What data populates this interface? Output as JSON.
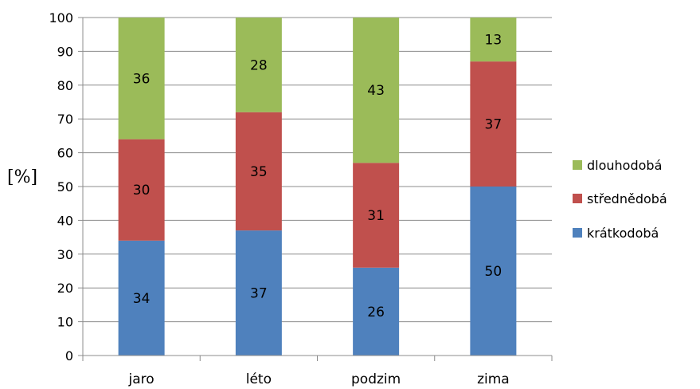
{
  "chart_data": {
    "type": "bar",
    "stacked": true,
    "categories": [
      "jaro",
      "léto",
      "podzim",
      "zima"
    ],
    "series": [
      {
        "name": "krátkodobá",
        "values": [
          34,
          37,
          26,
          50
        ],
        "color": "#4f81bd"
      },
      {
        "name": "střednědobá",
        "values": [
          30,
          35,
          31,
          37
        ],
        "color": "#c0504d"
      },
      {
        "name": "dlouhodobá",
        "values": [
          36,
          28,
          43,
          13
        ],
        "color": "#9bbb59"
      }
    ],
    "title": "",
    "xlabel": "",
    "ylabel": "[%]",
    "ylim": [
      0,
      100
    ],
    "yticks": [
      0,
      10,
      20,
      30,
      40,
      50,
      60,
      70,
      80,
      90,
      100
    ],
    "grid": true,
    "legend_position": "right"
  }
}
